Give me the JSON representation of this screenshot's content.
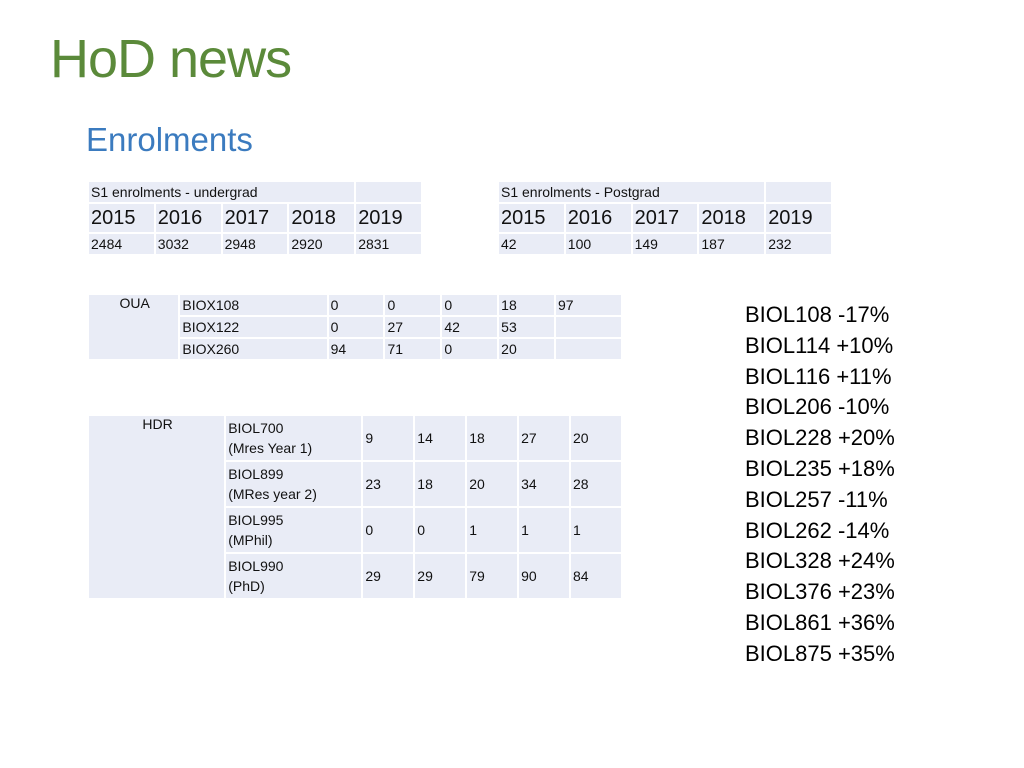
{
  "header": {
    "title": "HoD news",
    "subtitle": "Enrolments"
  },
  "undergrad": {
    "caption": "S1 enrolments - undergrad",
    "years": [
      "2015",
      "2016",
      "2017",
      "2018",
      "2019"
    ],
    "values": [
      "2484",
      "3032",
      "2948",
      "2920",
      "2831"
    ]
  },
  "postgrad": {
    "caption": "S1 enrolments - Postgrad",
    "years": [
      "2015",
      "2016",
      "2017",
      "2018",
      "2019"
    ],
    "values": [
      "42",
      "100",
      "149",
      "187",
      "232"
    ]
  },
  "oua": {
    "label": "OUA",
    "rows": [
      {
        "course": "BIOX108",
        "values": [
          "0",
          "0",
          "0",
          "18",
          "97"
        ]
      },
      {
        "course": "BIOX122",
        "values": [
          "0",
          "27",
          "42",
          "53",
          ""
        ]
      },
      {
        "course": "BIOX260",
        "values": [
          "94",
          "71",
          "0",
          "20",
          ""
        ]
      }
    ]
  },
  "hdr": {
    "label": "HDR",
    "rows": [
      {
        "course": "BIOL700",
        "desc": "(Mres Year 1)",
        "values": [
          "9",
          "14",
          "18",
          "27",
          "20"
        ]
      },
      {
        "course": "BIOL899",
        "desc": "(MRes year 2)",
        "values": [
          "23",
          "18",
          "20",
          "34",
          "28"
        ]
      },
      {
        "course": "BIOL995",
        "desc": "(MPhil)",
        "values": [
          "0",
          "0",
          "1",
          "1",
          "1"
        ]
      },
      {
        "course": "BIOL990",
        "desc": "(PhD)",
        "values": [
          "29",
          "29",
          "79",
          "90",
          "84"
        ]
      }
    ]
  },
  "changes": [
    "BIOL108 -17%",
    "BIOL114 +10%",
    "BIOL116 +11%",
    "BIOL206 -10%",
    "BIOL228 +20%",
    "BIOL235 +18%",
    "BIOL257 -11%",
    "BIOL262 -14%",
    "BIOL328 +24%",
    "BIOL376 +23%",
    "BIOL861 +36%",
    "BIOL875 +35%"
  ]
}
